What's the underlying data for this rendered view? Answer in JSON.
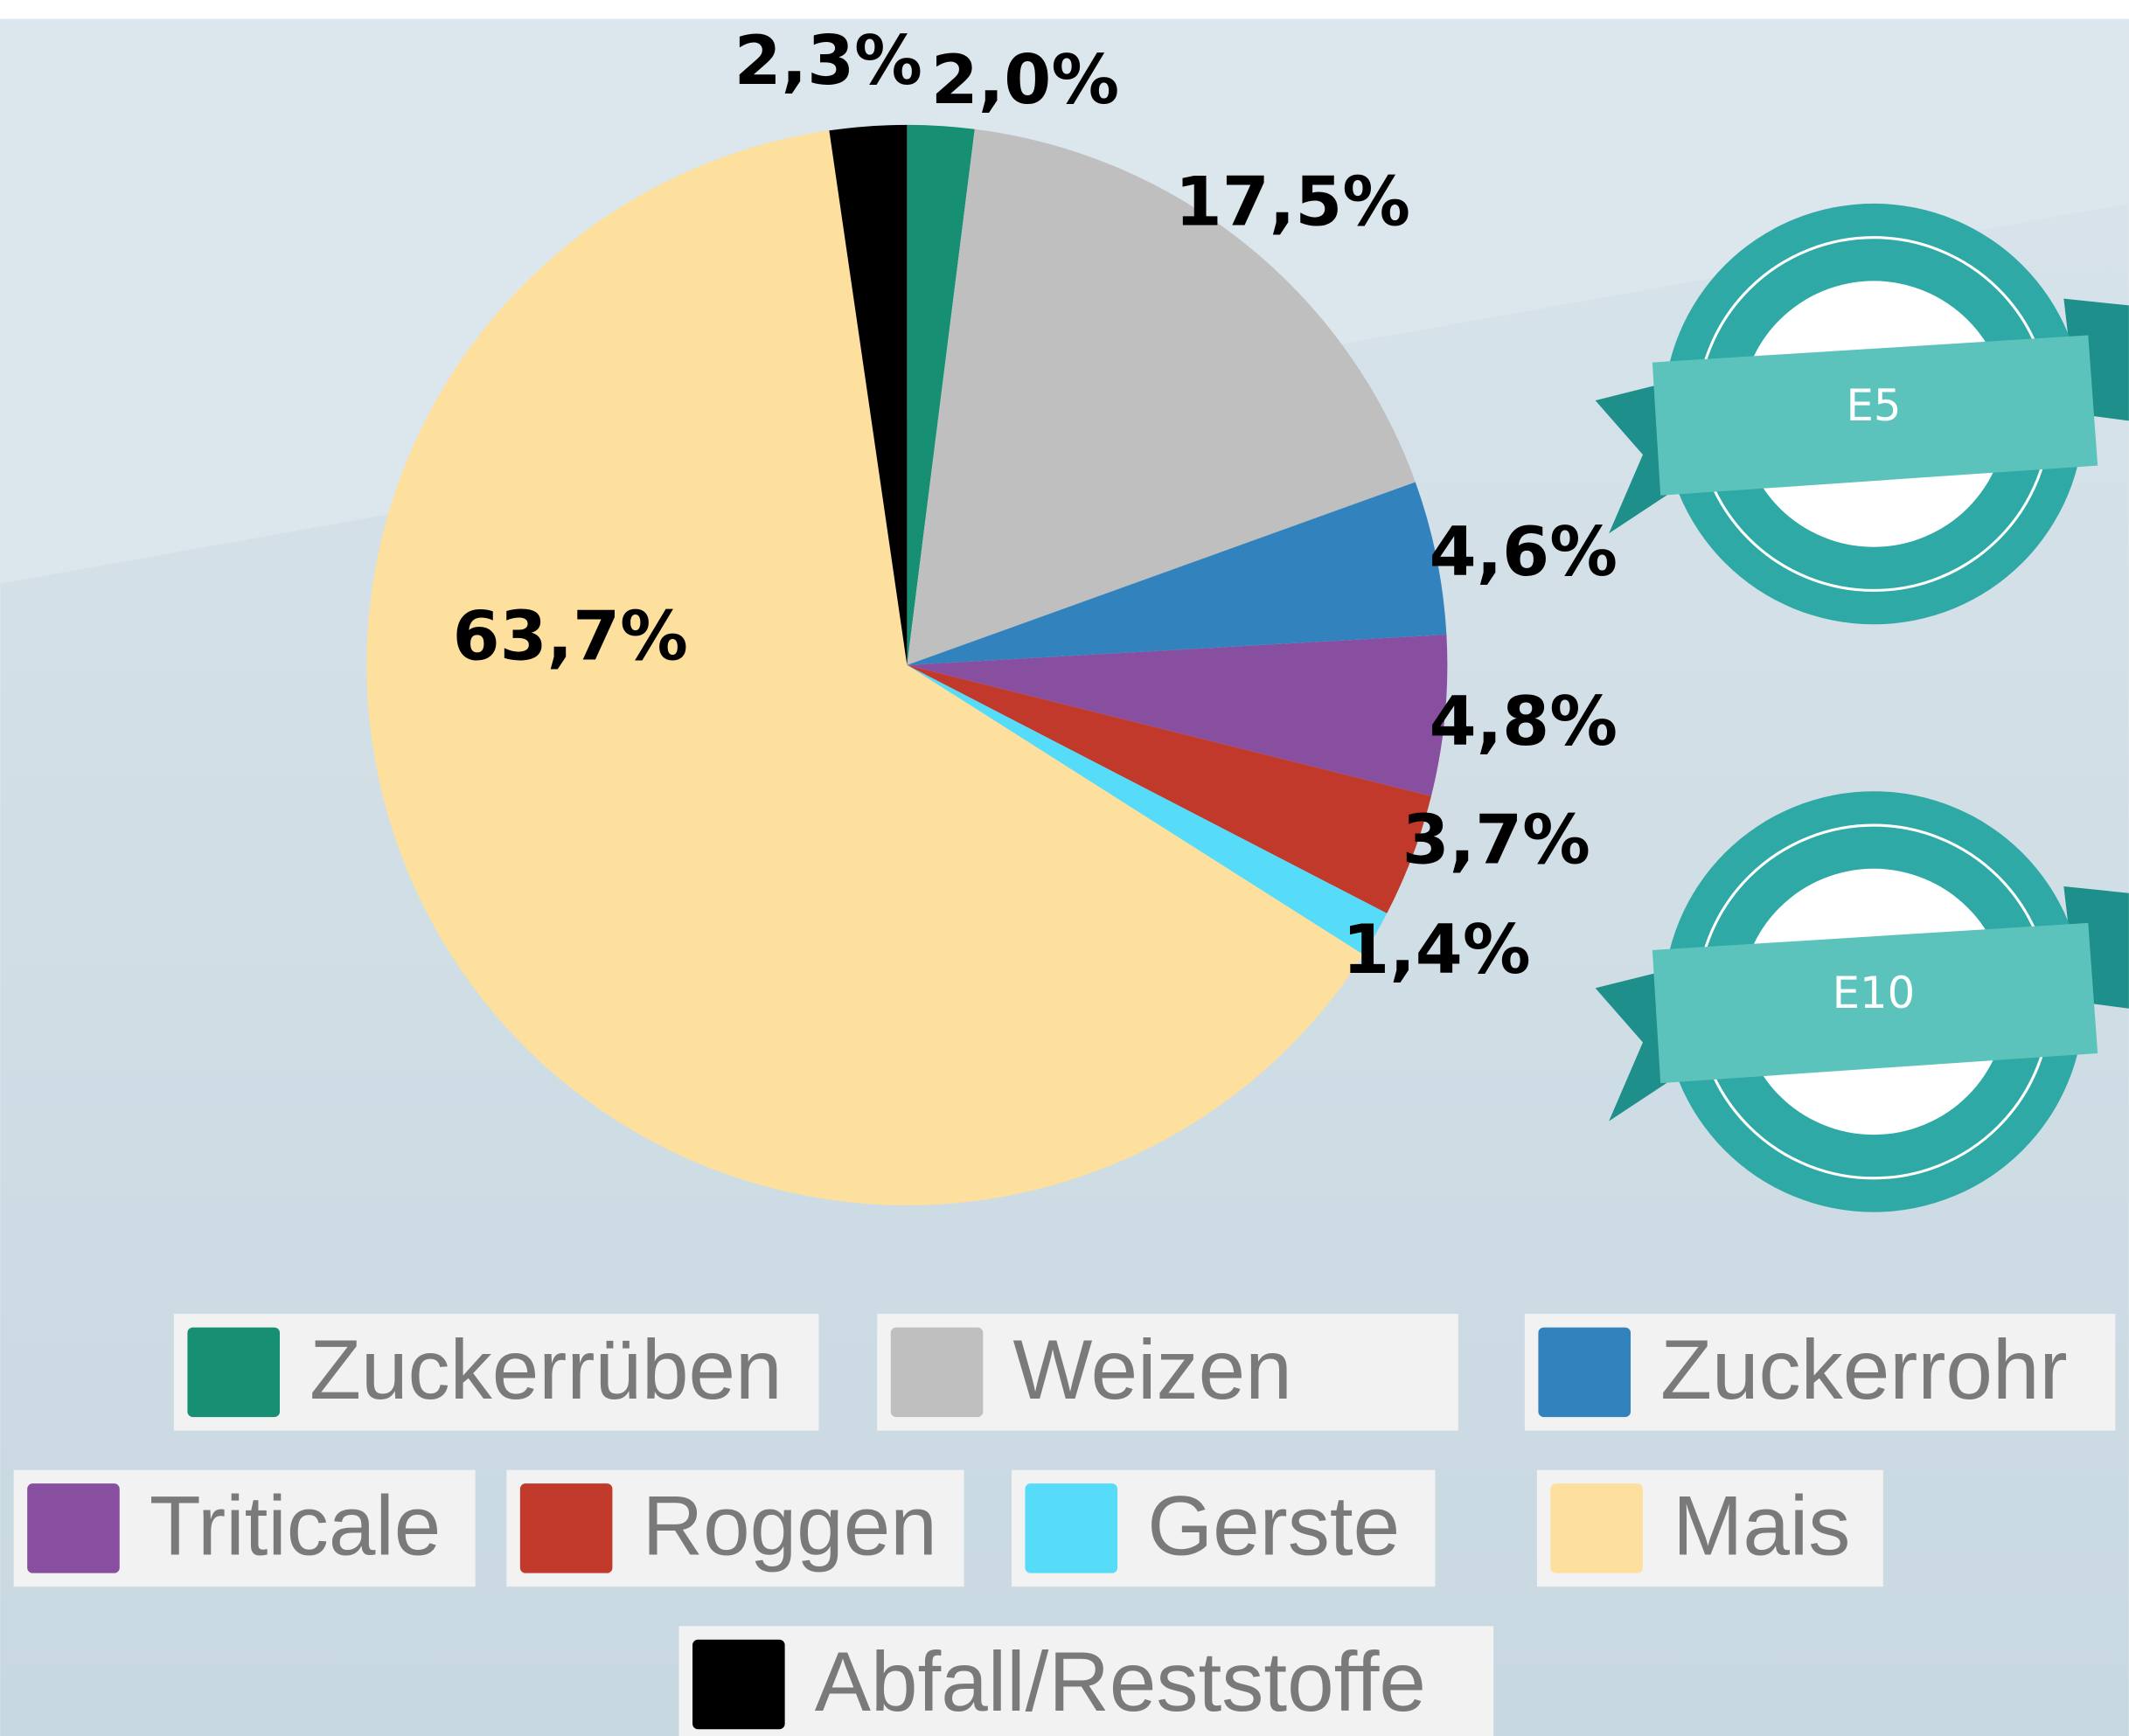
{
  "chart_data": {
    "type": "pie",
    "categories": [
      "Zuckerrüben",
      "Weizen",
      "Zuckerrohr",
      "Triticale",
      "Roggen",
      "Gerste",
      "Mais",
      "Abfall/Reststoffe"
    ],
    "values": [
      2.0,
      17.5,
      4.6,
      4.8,
      3.7,
      1.4,
      63.7,
      2.3
    ],
    "value_labels": [
      "2,0%",
      "17,5%",
      "4,6%",
      "4,8%",
      "3,7%",
      "1,4%",
      "63,7%",
      "2,3%"
    ],
    "colors": [
      "#168f73",
      "#bfbfbf",
      "#3182bd",
      "#884ea0",
      "#c0392b",
      "#56dcf8",
      "#fde09e",
      "#000000"
    ],
    "legend": "bottom"
  },
  "badges": [
    "E5",
    "E10"
  ]
}
